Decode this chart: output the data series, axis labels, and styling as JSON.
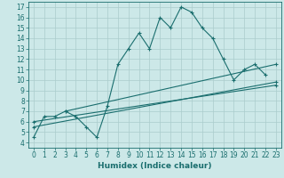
{
  "title": "",
  "xlabel": "Humidex (Indice chaleur)",
  "bg_color": "#cce8e8",
  "grid_color": "#aacccc",
  "line_color": "#1a6e6e",
  "xlim": [
    -0.5,
    23.5
  ],
  "ylim": [
    3.5,
    17.5
  ],
  "xticks": [
    0,
    1,
    2,
    3,
    4,
    5,
    6,
    7,
    8,
    9,
    10,
    11,
    12,
    13,
    14,
    15,
    16,
    17,
    18,
    19,
    20,
    21,
    22,
    23
  ],
  "yticks": [
    4,
    5,
    6,
    7,
    8,
    9,
    10,
    11,
    12,
    13,
    14,
    15,
    16,
    17
  ],
  "series": [
    {
      "x": [
        0,
        1,
        2,
        3,
        4,
        5,
        6,
        7,
        8,
        9,
        10,
        11,
        12,
        13,
        14,
        15,
        16,
        17,
        18,
        19,
        20,
        21,
        22
      ],
      "y": [
        4.5,
        6.5,
        6.5,
        7.0,
        6.5,
        5.5,
        4.5,
        7.5,
        11.5,
        13.0,
        14.5,
        13.0,
        16.0,
        15.0,
        17.0,
        16.5,
        15.0,
        14.0,
        12.0,
        10.0,
        11.0,
        11.5,
        10.5
      ]
    },
    {
      "x": [
        0,
        23
      ],
      "y": [
        6.0,
        9.5
      ]
    },
    {
      "x": [
        0,
        23
      ],
      "y": [
        5.5,
        9.8
      ]
    },
    {
      "x": [
        3,
        23
      ],
      "y": [
        7.0,
        11.5
      ]
    }
  ]
}
